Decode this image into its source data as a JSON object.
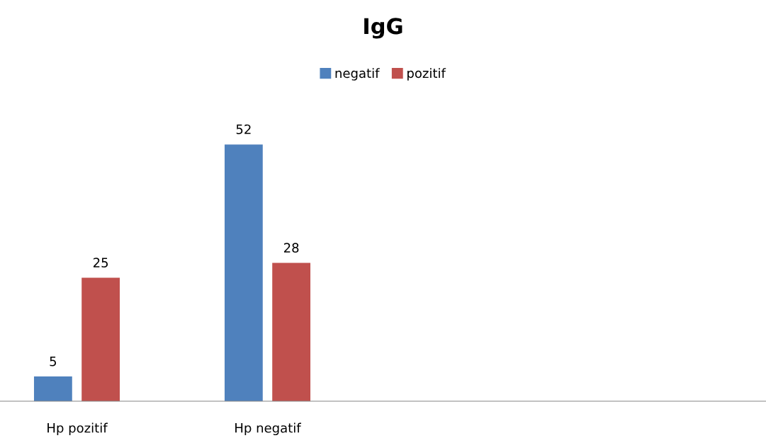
{
  "chart_data": {
    "type": "bar",
    "title": "IgG",
    "categories": [
      "Hp pozitif",
      "Hp negatif",
      null,
      null,
      null
    ],
    "series": [
      {
        "name": "negatif",
        "color": "#4f81bd",
        "values": [
          5,
          52,
          null,
          null,
          null
        ]
      },
      {
        "name": "pozitif",
        "color": "#c0504d",
        "values": [
          25,
          28,
          null,
          null,
          null
        ]
      }
    ],
    "data_labels": true,
    "legend": "top",
    "grid": false,
    "tick_labels": "x"
  }
}
